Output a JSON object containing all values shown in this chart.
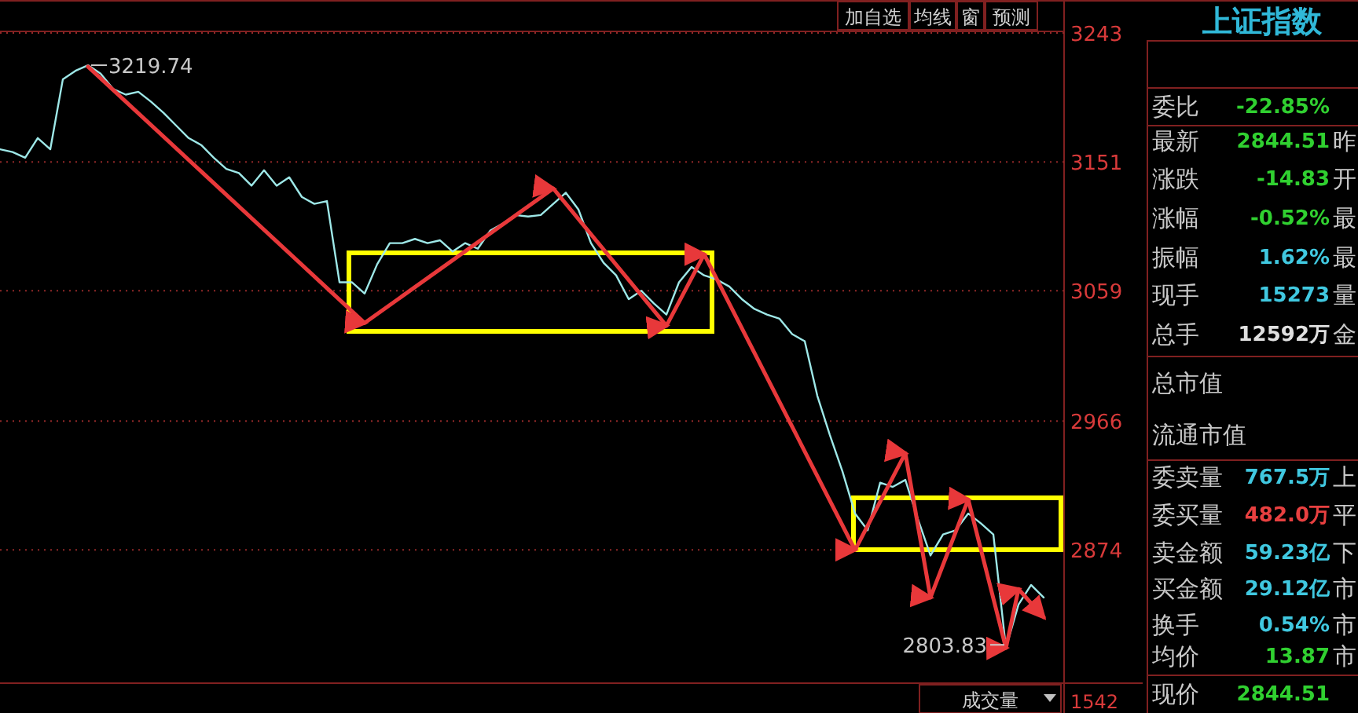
{
  "chart_data": [
    {
      "type": "line",
      "categories": [
        null,
        null,
        null,
        null,
        null,
        null,
        null,
        null,
        null,
        null,
        null,
        null,
        null,
        null,
        null,
        null,
        null,
        null,
        null,
        null,
        null,
        null,
        null,
        null,
        null,
        null,
        null,
        null,
        null,
        null,
        null,
        null,
        null,
        null,
        null,
        null,
        null,
        null,
        null,
        null,
        null,
        null,
        null,
        null,
        null,
        null,
        null,
        null,
        null,
        null,
        null,
        null,
        null,
        null,
        null,
        null,
        null,
        null,
        null,
        null,
        null,
        null,
        null,
        null,
        null,
        null,
        null,
        null,
        null,
        null,
        null,
        null,
        null,
        null,
        null,
        null,
        null,
        null,
        null,
        null,
        null,
        null,
        null,
        null,
        null,
        null,
        null,
        null,
        null,
        null,
        null
      ],
      "ylim": [
        2780,
        3243
      ],
      "yticks": [
        3243,
        3151,
        3059,
        2966,
        2874
      ],
      "grid": "y",
      "marker": "none",
      "series": [
        {
          "color": "#9ee8e8",
          "values": [
            3160,
            3158,
            3154,
            3168,
            3160,
            3210,
            3216,
            3220,
            3214,
            3203,
            3199,
            3201,
            3194,
            3186,
            3177,
            3168,
            3163,
            3154,
            3146,
            3143,
            3134,
            3145,
            3134,
            3140,
            3126,
            3121,
            3123,
            3065,
            3065,
            3057,
            3078,
            3093,
            3093,
            3096,
            3093,
            3095,
            3087,
            3093,
            3089,
            3102,
            3107,
            3113,
            3112,
            3113,
            3121,
            3129,
            3117,
            3093,
            3079,
            3070,
            3053,
            3059,
            3050,
            3042,
            3065,
            3076,
            3070,
            3067,
            3062,
            3053,
            3046,
            3042,
            3039,
            3028,
            3023,
            2984,
            2956,
            2930,
            2900,
            2888,
            2922,
            2919,
            2924,
            2896,
            2870,
            2885,
            2888,
            2900,
            2893,
            2885,
            2804,
            2835,
            2849,
            2840,
            null,
            null,
            null,
            null,
            null,
            null,
            null
          ]
        },
        {
          "type": "line",
          "color": "#e8383a",
          "values": [
            null,
            null,
            null,
            null,
            null,
            null,
            null,
            3219,
            null,
            null,
            null,
            null,
            null,
            null,
            null,
            null,
            null,
            null,
            null,
            null,
            null,
            null,
            null,
            null,
            null,
            null,
            null,
            null,
            null,
            3036,
            null,
            null,
            null,
            null,
            null,
            null,
            null,
            null,
            null,
            null,
            null,
            null,
            null,
            null,
            3132,
            null,
            null,
            null,
            null,
            null,
            null,
            null,
            null,
            3034,
            null,
            null,
            3085,
            null,
            null,
            null,
            null,
            null,
            null,
            null,
            null,
            null,
            null,
            null,
            2874,
            null,
            null,
            null,
            2943,
            null,
            2840,
            null,
            null,
            2910,
            null,
            null,
            2804,
            2846,
            null,
            2826,
            null,
            null,
            null,
            null,
            null,
            null,
            null
          ]
        }
      ],
      "annotations": [
        "3219.74",
        "2803.83",
        "加自选",
        "均线",
        "窗",
        "预测",
        "成交量",
        "1542"
      ]
    },
    {
      "type": "other",
      "title": "上证指数",
      "annotations": [
        "委比",
        "-22.85%",
        "最新",
        "2844.51",
        "昨",
        "涨跌",
        "-14.83",
        "开",
        "涨幅",
        "-0.52%",
        "最",
        "振幅",
        "1.62%",
        "最",
        "现手",
        "15273",
        "量",
        "总手",
        "12592万",
        "金",
        "总市值",
        "流通市值",
        "委卖量",
        "767.5万",
        "上",
        "委买量",
        "482.0万",
        "平",
        "卖金额",
        "59.23亿",
        "下",
        "买金额",
        "29.12亿",
        "市",
        "换手",
        "0.54%",
        "市",
        "均价",
        "13.87",
        "市",
        "现价",
        "2844.51"
      ]
    }
  ]
}
